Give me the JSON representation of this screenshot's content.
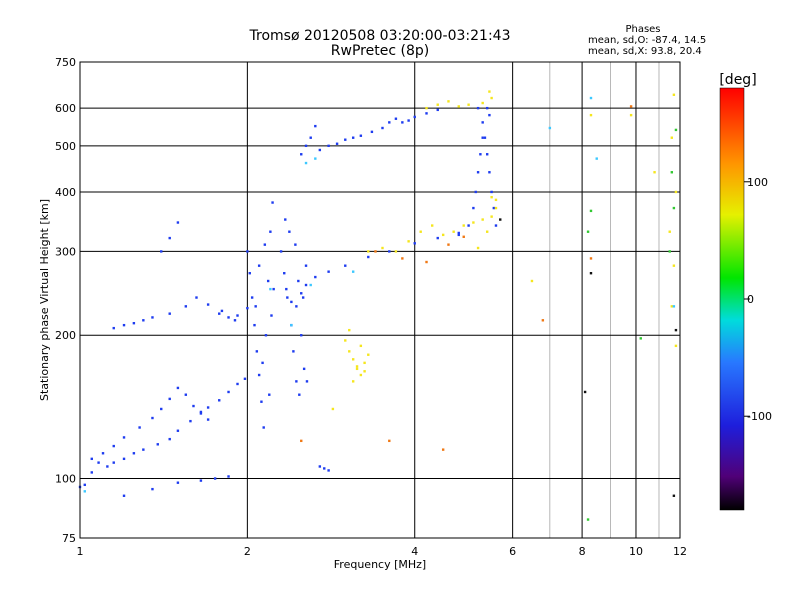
{
  "chart_data": {
    "type": "scatter",
    "title": "Tromsø 20120508 03:20:00-03:21:43",
    "subtitle": "RwPretec (8p)",
    "xlabel": "Frequency [MHz]",
    "ylabel": "Stationary phase Virtual Height [km]",
    "x_scale": "log",
    "y_scale": "log",
    "xlim": [
      1,
      12
    ],
    "ylim": [
      75,
      750
    ],
    "x_ticks": [
      1,
      2,
      4,
      6,
      8,
      10,
      12
    ],
    "y_ticks": [
      75,
      100,
      200,
      300,
      400,
      500,
      600,
      750
    ],
    "grid": true,
    "phase_info": {
      "heading": "Phases",
      "line1": "mean, sd,O: -87.4, 14.5",
      "line2": "mean, sd,X:  93.8, 20.4"
    },
    "colorbar": {
      "label": "[deg]",
      "range": [
        -180,
        180
      ],
      "ticks": [
        100,
        0,
        -100
      ]
    },
    "series": [
      {
        "mode": "O",
        "color": "#1e3cf0",
        "phase_mean": -87.4,
        "points": [
          [
            1.0,
            96
          ],
          [
            1.02,
            97
          ],
          [
            1.05,
            103
          ],
          [
            1.08,
            108
          ],
          [
            1.12,
            106
          ],
          [
            1.15,
            108
          ],
          [
            1.2,
            110
          ],
          [
            1.25,
            113
          ],
          [
            1.3,
            115
          ],
          [
            1.38,
            118
          ],
          [
            1.45,
            121
          ],
          [
            1.5,
            126
          ],
          [
            1.58,
            132
          ],
          [
            1.65,
            137
          ],
          [
            1.7,
            141
          ],
          [
            1.78,
            146
          ],
          [
            1.85,
            152
          ],
          [
            1.92,
            158
          ],
          [
            1.98,
            162
          ],
          [
            1.05,
            110
          ],
          [
            1.1,
            113
          ],
          [
            1.15,
            117
          ],
          [
            1.2,
            122
          ],
          [
            1.28,
            128
          ],
          [
            1.35,
            134
          ],
          [
            1.4,
            140
          ],
          [
            1.45,
            147
          ],
          [
            1.5,
            155
          ],
          [
            1.55,
            150
          ],
          [
            1.6,
            142
          ],
          [
            1.65,
            138
          ],
          [
            1.7,
            133
          ],
          [
            1.2,
            92
          ],
          [
            1.35,
            95
          ],
          [
            1.5,
            98
          ],
          [
            1.65,
            99
          ],
          [
            1.75,
            100
          ],
          [
            1.85,
            101
          ],
          [
            1.15,
            207
          ],
          [
            1.2,
            210
          ],
          [
            1.25,
            212
          ],
          [
            1.3,
            215
          ],
          [
            1.35,
            218
          ],
          [
            1.45,
            222
          ],
          [
            1.55,
            230
          ],
          [
            1.62,
            240
          ],
          [
            1.7,
            232
          ],
          [
            1.78,
            222
          ],
          [
            1.85,
            218
          ],
          [
            1.92,
            220
          ],
          [
            2.0,
            228
          ],
          [
            2.0,
            300
          ],
          [
            2.02,
            270
          ],
          [
            2.04,
            240
          ],
          [
            2.06,
            210
          ],
          [
            2.08,
            185
          ],
          [
            2.1,
            165
          ],
          [
            2.12,
            145
          ],
          [
            2.14,
            128
          ],
          [
            2.16,
            200
          ],
          [
            2.18,
            260
          ],
          [
            2.2,
            330
          ],
          [
            2.22,
            380
          ],
          [
            2.15,
            310
          ],
          [
            2.1,
            280
          ],
          [
            2.07,
            230
          ],
          [
            2.13,
            175
          ],
          [
            2.19,
            150
          ],
          [
            2.21,
            220
          ],
          [
            2.23,
            250
          ],
          [
            2.3,
            300
          ],
          [
            2.33,
            270
          ],
          [
            2.36,
            240
          ],
          [
            2.4,
            210
          ],
          [
            2.42,
            185
          ],
          [
            2.45,
            160
          ],
          [
            2.48,
            150
          ],
          [
            2.5,
            200
          ],
          [
            2.52,
            240
          ],
          [
            2.55,
            280
          ],
          [
            2.38,
            330
          ],
          [
            2.34,
            350
          ],
          [
            2.44,
            310
          ],
          [
            2.47,
            260
          ],
          [
            2.53,
            170
          ],
          [
            2.56,
            160
          ],
          [
            2.35,
            250
          ],
          [
            2.4,
            235
          ],
          [
            2.45,
            230
          ],
          [
            2.5,
            245
          ],
          [
            2.55,
            255
          ],
          [
            2.65,
            265
          ],
          [
            2.8,
            272
          ],
          [
            3.0,
            280
          ],
          [
            3.3,
            292
          ],
          [
            3.6,
            300
          ],
          [
            4.0,
            312
          ],
          [
            4.4,
            320
          ],
          [
            4.8,
            328
          ],
          [
            2.5,
            480
          ],
          [
            2.55,
            500
          ],
          [
            2.6,
            520
          ],
          [
            2.65,
            550
          ],
          [
            2.7,
            490
          ],
          [
            2.8,
            500
          ],
          [
            2.9,
            505
          ],
          [
            3.0,
            515
          ],
          [
            3.1,
            520
          ],
          [
            3.2,
            525
          ],
          [
            3.35,
            535
          ],
          [
            3.5,
            545
          ],
          [
            3.6,
            560
          ],
          [
            3.7,
            570
          ],
          [
            3.8,
            560
          ],
          [
            3.9,
            565
          ],
          [
            4.0,
            575
          ],
          [
            4.2,
            585
          ],
          [
            4.4,
            595
          ],
          [
            5.2,
            600
          ],
          [
            5.3,
            560
          ],
          [
            5.35,
            520
          ],
          [
            5.4,
            480
          ],
          [
            5.45,
            440
          ],
          [
            5.5,
            400
          ],
          [
            5.55,
            370
          ],
          [
            5.6,
            340
          ],
          [
            5.3,
            520
          ],
          [
            5.25,
            480
          ],
          [
            5.2,
            440
          ],
          [
            5.15,
            400
          ],
          [
            5.1,
            370
          ],
          [
            5.0,
            340
          ],
          [
            4.8,
            325
          ],
          [
            5.4,
            600
          ],
          [
            5.45,
            580
          ],
          [
            1.4,
            300
          ],
          [
            1.45,
            320
          ],
          [
            1.5,
            345
          ],
          [
            2.7,
            106
          ],
          [
            2.75,
            105
          ],
          [
            2.8,
            104
          ],
          [
            1.8,
            225
          ],
          [
            1.9,
            215
          ]
        ]
      },
      {
        "mode": "X",
        "color": "#f5e61e",
        "phase_mean": 93.8,
        "points": [
          [
            3.0,
            195
          ],
          [
            3.05,
            185
          ],
          [
            3.1,
            178
          ],
          [
            3.15,
            170
          ],
          [
            3.2,
            165
          ],
          [
            3.25,
            175
          ],
          [
            3.3,
            182
          ],
          [
            3.1,
            160
          ],
          [
            3.05,
            205
          ],
          [
            3.2,
            190
          ],
          [
            3.25,
            168
          ],
          [
            3.15,
            172
          ],
          [
            3.3,
            300
          ],
          [
            3.5,
            305
          ],
          [
            3.7,
            300
          ],
          [
            3.9,
            315
          ],
          [
            4.1,
            330
          ],
          [
            4.3,
            340
          ],
          [
            4.5,
            325
          ],
          [
            4.7,
            330
          ],
          [
            4.9,
            340
          ],
          [
            5.1,
            345
          ],
          [
            5.3,
            350
          ],
          [
            5.5,
            355
          ],
          [
            5.6,
            370
          ],
          [
            5.6,
            385
          ],
          [
            5.5,
            390
          ],
          [
            5.4,
            330
          ],
          [
            5.2,
            305
          ],
          [
            4.2,
            600
          ],
          [
            4.4,
            610
          ],
          [
            4.6,
            620
          ],
          [
            4.8,
            605
          ],
          [
            5.0,
            610
          ],
          [
            5.3,
            615
          ],
          [
            5.5,
            630
          ],
          [
            5.45,
            650
          ],
          [
            11.7,
            640
          ],
          [
            11.6,
            520
          ],
          [
            11.8,
            400
          ],
          [
            11.5,
            330
          ],
          [
            11.7,
            280
          ],
          [
            11.6,
            230
          ],
          [
            11.8,
            190
          ],
          [
            10.8,
            440
          ],
          [
            9.8,
            580
          ],
          [
            8.3,
            580
          ],
          [
            2.85,
            140
          ],
          [
            6.5,
            260
          ]
        ]
      },
      {
        "mode": "scatter",
        "color": "#3cc8ff",
        "phase_mean": -40,
        "points": [
          [
            1.02,
            94
          ],
          [
            2.6,
            255
          ],
          [
            2.55,
            460
          ],
          [
            2.65,
            470
          ],
          [
            3.1,
            272
          ],
          [
            2.4,
            210
          ],
          [
            2.2,
            250
          ],
          [
            8.3,
            630
          ],
          [
            7.0,
            545
          ],
          [
            8.5,
            470
          ],
          [
            11.7,
            230
          ]
        ]
      },
      {
        "mode": "scatter",
        "color": "#f07814",
        "phase_mean": 130,
        "points": [
          [
            3.4,
            300
          ],
          [
            3.8,
            290
          ],
          [
            4.2,
            285
          ],
          [
            4.6,
            310
          ],
          [
            4.9,
            322
          ],
          [
            8.3,
            290
          ],
          [
            6.8,
            215
          ],
          [
            3.6,
            120
          ],
          [
            4.5,
            115
          ],
          [
            9.8,
            605
          ],
          [
            2.5,
            120
          ]
        ]
      },
      {
        "mode": "scatter",
        "color": "#32c832",
        "phase_mean": 30,
        "points": [
          [
            8.3,
            365
          ],
          [
            8.2,
            330
          ],
          [
            11.7,
            370
          ],
          [
            11.5,
            300
          ],
          [
            10.2,
            197
          ],
          [
            8.2,
            82
          ],
          [
            11.8,
            540
          ],
          [
            11.6,
            440
          ]
        ]
      },
      {
        "mode": "scatter",
        "color": "#111111",
        "phase_mean": -150,
        "points": [
          [
            8.3,
            270
          ],
          [
            11.7,
            92
          ],
          [
            11.8,
            205
          ],
          [
            8.1,
            152
          ],
          [
            5.7,
            350
          ]
        ]
      }
    ]
  }
}
